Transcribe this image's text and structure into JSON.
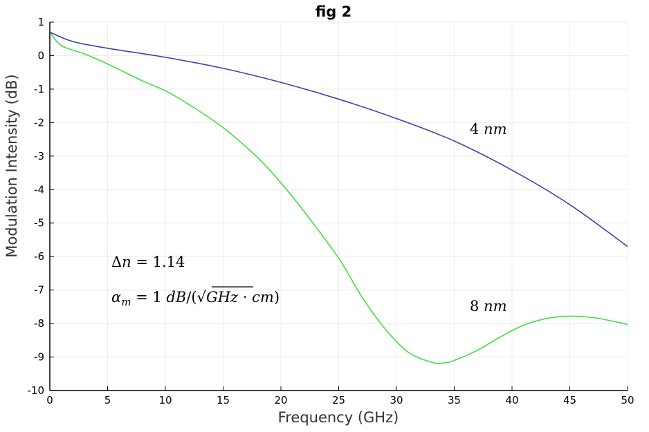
{
  "chart_data": {
    "type": "line",
    "title": "fig 2",
    "xlabel": "Frequency (GHz)",
    "ylabel": "Modulation Intensity (dB)",
    "xlim": [
      0,
      50
    ],
    "ylim": [
      -10,
      1
    ],
    "xticks": [
      0,
      5,
      10,
      15,
      20,
      25,
      30,
      35,
      40,
      45,
      50
    ],
    "yticks": [
      1,
      0,
      -1,
      -2,
      -3,
      -4,
      -5,
      -6,
      -7,
      -8,
      -9,
      -10
    ],
    "grid": true,
    "series": [
      {
        "name": "4 nm",
        "color": "#4040b0",
        "x": [
          0,
          2,
          5,
          10,
          15,
          20,
          25,
          30,
          35,
          40,
          45,
          50
        ],
        "y": [
          0.7,
          0.42,
          0.22,
          -0.05,
          -0.38,
          -0.8,
          -1.3,
          -1.88,
          -2.55,
          -3.42,
          -4.45,
          -5.7
        ]
      },
      {
        "name": "8 nm",
        "color": "#40e040",
        "x": [
          0,
          1,
          3,
          5,
          8,
          10,
          12,
          15,
          18,
          20,
          22,
          25,
          27,
          29,
          31,
          33,
          34,
          35,
          37,
          39,
          41,
          43,
          45,
          47,
          49,
          50
        ],
        "y": [
          0.7,
          0.3,
          0.05,
          -0.25,
          -0.75,
          -1.05,
          -1.45,
          -2.15,
          -3.05,
          -3.8,
          -4.65,
          -6.05,
          -7.2,
          -8.15,
          -8.85,
          -9.15,
          -9.18,
          -9.1,
          -8.8,
          -8.4,
          -8.05,
          -7.85,
          -7.78,
          -7.82,
          -7.95,
          -8.03
        ]
      }
    ],
    "annotations": [
      {
        "text": "4 nm",
        "x": 38,
        "y": -2.2
      },
      {
        "text": "8 nm",
        "x": 38,
        "y": -7.55
      },
      {
        "text": "Δn = 1.14",
        "x": 7.5,
        "y": -6.15
      },
      {
        "text": "α_m = 1 dB/(√GHz · cm)",
        "x": 10,
        "y": -7.25
      }
    ]
  },
  "annot_text": {
    "delta_label": "Δ",
    "n_var": "n",
    "delta_value": " = 1.14",
    "alpha": "α",
    "alpha_sub": "m",
    "alpha_eq": " = 1 ",
    "alpha_unit_db": "dB",
    "alpha_slash": "/(√",
    "alpha_ghz": "GHz",
    "alpha_dot": " · ",
    "alpha_cm": "cm",
    "alpha_close": ")",
    "label_4": "4 ",
    "label_8": "8 ",
    "label_nm": "nm"
  }
}
